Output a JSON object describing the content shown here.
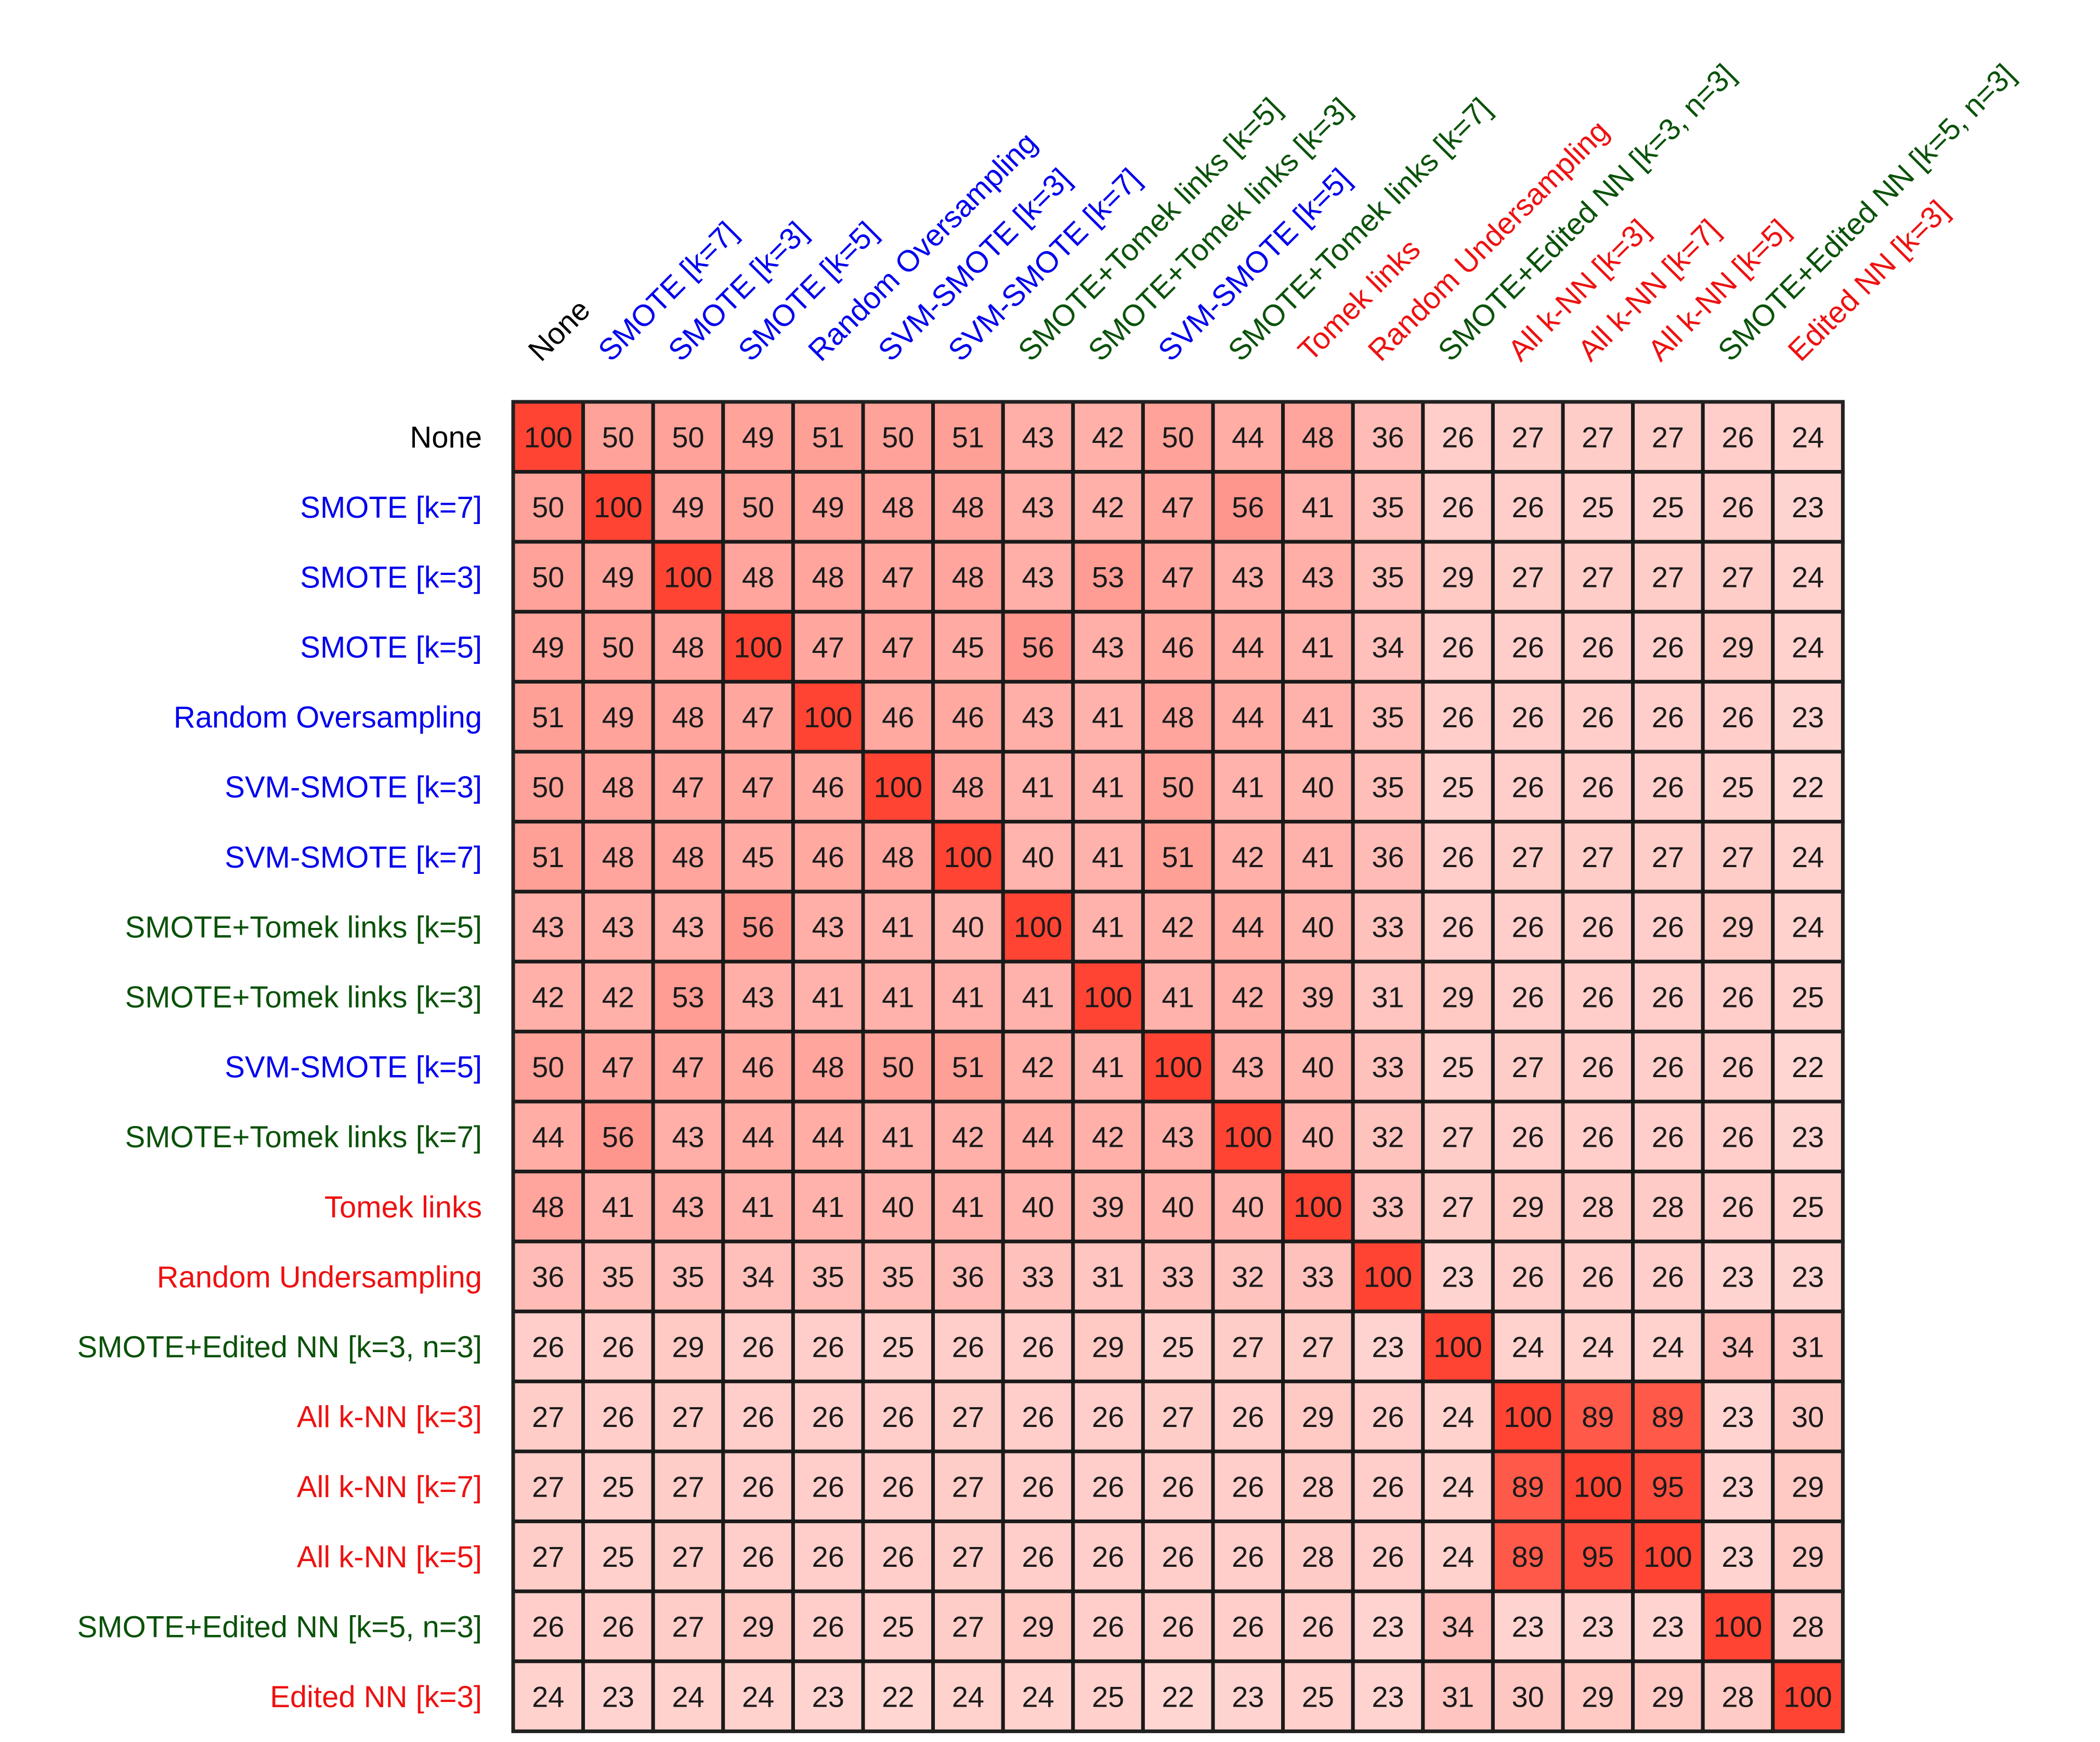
{
  "chart_data": {
    "type": "heatmap",
    "title": "",
    "xlabel": "",
    "ylabel": "",
    "value_range": [
      0,
      100
    ],
    "colormap": {
      "low": "#ffffff",
      "high": "#ff4433"
    },
    "group_colors": {
      "none": "#000000",
      "oversampling": "#0000ee",
      "combined": "#0a520a",
      "undersampling": "#ee1111"
    },
    "labels": [
      "None",
      "SMOTE [k=7]",
      "SMOTE [k=3]",
      "SMOTE [k=5]",
      "Random Oversampling",
      "SVM-SMOTE [k=3]",
      "SVM-SMOTE [k=7]",
      "SMOTE+Tomek links [k=5]",
      "SMOTE+Tomek links [k=3]",
      "SVM-SMOTE [k=5]",
      "SMOTE+Tomek links [k=7]",
      "Tomek links",
      "Random Undersampling",
      "SMOTE+Edited NN [k=3, n=3]",
      "All k-NN [k=3]",
      "All k-NN [k=7]",
      "All k-NN [k=5]",
      "SMOTE+Edited NN [k=5, n=3]",
      "Edited NN [k=3]"
    ],
    "label_groups": [
      "none",
      "oversampling",
      "oversampling",
      "oversampling",
      "oversampling",
      "oversampling",
      "oversampling",
      "combined",
      "combined",
      "oversampling",
      "combined",
      "undersampling",
      "undersampling",
      "combined",
      "undersampling",
      "undersampling",
      "undersampling",
      "combined",
      "undersampling"
    ],
    "values": [
      [
        100,
        50,
        50,
        49,
        51,
        50,
        51,
        43,
        42,
        50,
        44,
        48,
        36,
        26,
        27,
        27,
        27,
        26,
        24
      ],
      [
        50,
        100,
        49,
        50,
        49,
        48,
        48,
        43,
        42,
        47,
        56,
        41,
        35,
        26,
        26,
        25,
        25,
        26,
        23
      ],
      [
        50,
        49,
        100,
        48,
        48,
        47,
        48,
        43,
        53,
        47,
        43,
        43,
        35,
        29,
        27,
        27,
        27,
        27,
        24
      ],
      [
        49,
        50,
        48,
        100,
        47,
        47,
        45,
        56,
        43,
        46,
        44,
        41,
        34,
        26,
        26,
        26,
        26,
        29,
        24
      ],
      [
        51,
        49,
        48,
        47,
        100,
        46,
        46,
        43,
        41,
        48,
        44,
        41,
        35,
        26,
        26,
        26,
        26,
        26,
        23
      ],
      [
        50,
        48,
        47,
        47,
        46,
        100,
        48,
        41,
        41,
        50,
        41,
        40,
        35,
        25,
        26,
        26,
        26,
        25,
        22
      ],
      [
        51,
        48,
        48,
        45,
        46,
        48,
        100,
        40,
        41,
        51,
        42,
        41,
        36,
        26,
        27,
        27,
        27,
        27,
        24
      ],
      [
        43,
        43,
        43,
        56,
        43,
        41,
        40,
        100,
        41,
        42,
        44,
        40,
        33,
        26,
        26,
        26,
        26,
        29,
        24
      ],
      [
        42,
        42,
        53,
        43,
        41,
        41,
        41,
        41,
        100,
        41,
        42,
        39,
        31,
        29,
        26,
        26,
        26,
        26,
        25
      ],
      [
        50,
        47,
        47,
        46,
        48,
        50,
        51,
        42,
        41,
        100,
        43,
        40,
        33,
        25,
        27,
        26,
        26,
        26,
        22
      ],
      [
        44,
        56,
        43,
        44,
        44,
        41,
        42,
        44,
        42,
        43,
        100,
        40,
        32,
        27,
        26,
        26,
        26,
        26,
        23
      ],
      [
        48,
        41,
        43,
        41,
        41,
        40,
        41,
        40,
        39,
        40,
        40,
        100,
        33,
        27,
        29,
        28,
        28,
        26,
        25
      ],
      [
        36,
        35,
        35,
        34,
        35,
        35,
        36,
        33,
        31,
        33,
        32,
        33,
        100,
        23,
        26,
        26,
        26,
        23,
        23
      ],
      [
        26,
        26,
        29,
        26,
        26,
        25,
        26,
        26,
        29,
        25,
        27,
        27,
        23,
        100,
        24,
        24,
        24,
        34,
        31
      ],
      [
        27,
        26,
        27,
        26,
        26,
        26,
        27,
        26,
        26,
        27,
        26,
        29,
        26,
        24,
        100,
        89,
        89,
        23,
        30
      ],
      [
        27,
        25,
        27,
        26,
        26,
        26,
        27,
        26,
        26,
        26,
        26,
        28,
        26,
        24,
        89,
        100,
        95,
        23,
        29
      ],
      [
        27,
        25,
        27,
        26,
        26,
        26,
        27,
        26,
        26,
        26,
        26,
        28,
        26,
        24,
        89,
        95,
        100,
        23,
        29
      ],
      [
        26,
        26,
        27,
        29,
        26,
        25,
        27,
        29,
        26,
        26,
        26,
        26,
        23,
        34,
        23,
        23,
        23,
        100,
        28
      ],
      [
        24,
        23,
        24,
        24,
        23,
        22,
        24,
        24,
        25,
        22,
        23,
        25,
        23,
        31,
        30,
        29,
        29,
        28,
        100
      ]
    ]
  }
}
